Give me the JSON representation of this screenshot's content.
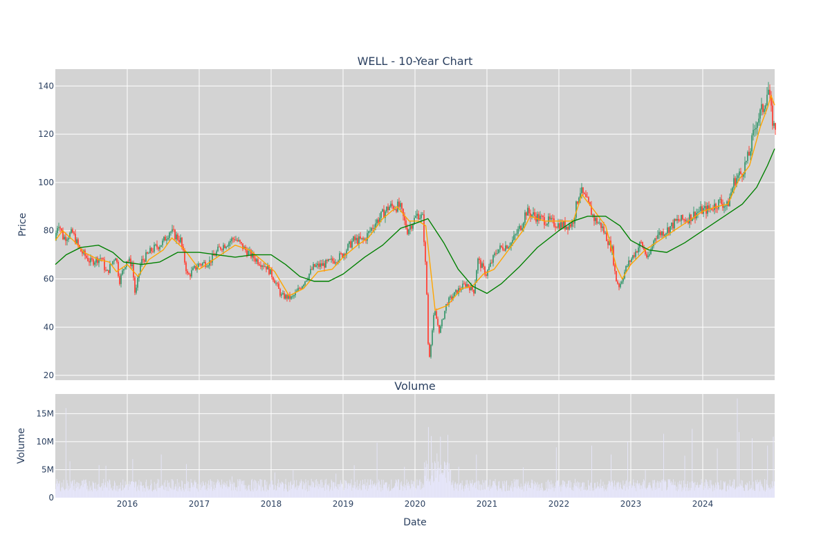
{
  "chart_data": [
    {
      "type": "candlestick",
      "title": "WELL - 10-Year Chart",
      "ylabel": "Price",
      "xlabel": "",
      "xlim": [
        2015.0,
        2025.0
      ],
      "ylim": [
        18,
        147
      ],
      "y_ticks": [
        20,
        40,
        60,
        80,
        100,
        120,
        140
      ],
      "x_ticks": [
        2016,
        2017,
        2018,
        2019,
        2020,
        2021,
        2022,
        2023,
        2024
      ],
      "x_tick_labels": [
        "2016",
        "2017",
        "2018",
        "2019",
        "2020",
        "2021",
        "2022",
        "2023",
        "2024"
      ],
      "grid": true,
      "up_color": "#3d9970",
      "down_color": "#ff4136",
      "plot_bg": "#d3d3d3",
      "grid_color": "#ffffff",
      "price_path": [
        [
          2015.0,
          76
        ],
        [
          2015.05,
          84
        ],
        [
          2015.12,
          77
        ],
        [
          2015.25,
          79
        ],
        [
          2015.35,
          72
        ],
        [
          2015.5,
          67
        ],
        [
          2015.65,
          69
        ],
        [
          2015.72,
          62
        ],
        [
          2015.85,
          70
        ],
        [
          2015.9,
          59
        ],
        [
          2016.0,
          68
        ],
        [
          2016.08,
          66
        ],
        [
          2016.12,
          53
        ],
        [
          2016.2,
          67
        ],
        [
          2016.35,
          72
        ],
        [
          2016.5,
          75
        ],
        [
          2016.6,
          80
        ],
        [
          2016.75,
          76
        ],
        [
          2016.85,
          61
        ],
        [
          2017.0,
          66
        ],
        [
          2017.15,
          67
        ],
        [
          2017.3,
          73
        ],
        [
          2017.5,
          77
        ],
        [
          2017.65,
          72
        ],
        [
          2017.8,
          68
        ],
        [
          2017.95,
          65
        ],
        [
          2018.05,
          60
        ],
        [
          2018.15,
          53
        ],
        [
          2018.3,
          52
        ],
        [
          2018.45,
          58
        ],
        [
          2018.6,
          65
        ],
        [
          2018.75,
          66
        ],
        [
          2018.9,
          68
        ],
        [
          2019.0,
          70
        ],
        [
          2019.15,
          76
        ],
        [
          2019.3,
          76
        ],
        [
          2019.45,
          83
        ],
        [
          2019.65,
          90
        ],
        [
          2019.8,
          90
        ],
        [
          2019.9,
          80
        ],
        [
          2020.05,
          87
        ],
        [
          2020.12,
          85
        ],
        [
          2020.17,
          57
        ],
        [
          2020.2,
          25
        ],
        [
          2020.28,
          47
        ],
        [
          2020.35,
          38
        ],
        [
          2020.45,
          50
        ],
        [
          2020.6,
          55
        ],
        [
          2020.72,
          58
        ],
        [
          2020.83,
          55
        ],
        [
          2020.88,
          68
        ],
        [
          2021.0,
          62
        ],
        [
          2021.15,
          72
        ],
        [
          2021.35,
          75
        ],
        [
          2021.5,
          83
        ],
        [
          2021.55,
          88
        ],
        [
          2021.75,
          85
        ],
        [
          2021.95,
          83
        ],
        [
          2022.1,
          82
        ],
        [
          2022.2,
          83
        ],
        [
          2022.3,
          97
        ],
        [
          2022.4,
          92
        ],
        [
          2022.5,
          85
        ],
        [
          2022.6,
          82
        ],
        [
          2022.75,
          72
        ],
        [
          2022.8,
          60
        ],
        [
          2022.85,
          57
        ],
        [
          2022.95,
          65
        ],
        [
          2023.05,
          70
        ],
        [
          2023.15,
          75
        ],
        [
          2023.25,
          68
        ],
        [
          2023.35,
          78
        ],
        [
          2023.5,
          80
        ],
        [
          2023.65,
          84
        ],
        [
          2023.8,
          85
        ],
        [
          2023.95,
          88
        ],
        [
          2024.1,
          89
        ],
        [
          2024.25,
          92
        ],
        [
          2024.35,
          90
        ],
        [
          2024.45,
          101
        ],
        [
          2024.55,
          104
        ],
        [
          2024.65,
          111
        ],
        [
          2024.75,
          125
        ],
        [
          2024.85,
          131
        ],
        [
          2024.92,
          139
        ],
        [
          2024.96,
          129
        ],
        [
          2025.0,
          123
        ]
      ],
      "series": [
        {
          "color": "#ffa500",
          "points": [
            [
              2015.0,
              76
            ],
            [
              2015.1,
              80
            ],
            [
              2015.25,
              76
            ],
            [
              2015.4,
              71
            ],
            [
              2015.6,
              68
            ],
            [
              2015.75,
              67
            ],
            [
              2015.85,
              63
            ],
            [
              2016.0,
              66
            ],
            [
              2016.15,
              61
            ],
            [
              2016.3,
              68
            ],
            [
              2016.5,
              72
            ],
            [
              2016.62,
              77
            ],
            [
              2016.8,
              72
            ],
            [
              2017.0,
              64
            ],
            [
              2017.15,
              67
            ],
            [
              2017.3,
              70
            ],
            [
              2017.5,
              74
            ],
            [
              2017.7,
              72
            ],
            [
              2017.9,
              67
            ],
            [
              2018.05,
              63
            ],
            [
              2018.25,
              53
            ],
            [
              2018.45,
              56
            ],
            [
              2018.65,
              63
            ],
            [
              2018.85,
              64
            ],
            [
              2019.0,
              69
            ],
            [
              2019.2,
              74
            ],
            [
              2019.35,
              77
            ],
            [
              2019.55,
              85
            ],
            [
              2019.75,
              90
            ],
            [
              2019.92,
              84
            ],
            [
              2020.05,
              84
            ],
            [
              2020.15,
              82
            ],
            [
              2020.28,
              47
            ],
            [
              2020.45,
              49
            ],
            [
              2020.65,
              56
            ],
            [
              2020.8,
              57
            ],
            [
              2020.95,
              62
            ],
            [
              2021.1,
              64
            ],
            [
              2021.3,
              72
            ],
            [
              2021.5,
              80
            ],
            [
              2021.6,
              86
            ],
            [
              2021.8,
              84
            ],
            [
              2022.0,
              84
            ],
            [
              2022.2,
              84
            ],
            [
              2022.32,
              95
            ],
            [
              2022.5,
              88
            ],
            [
              2022.65,
              82
            ],
            [
              2022.8,
              65
            ],
            [
              2022.88,
              60
            ],
            [
              2023.0,
              66
            ],
            [
              2023.2,
              72
            ],
            [
              2023.4,
              76
            ],
            [
              2023.6,
              80
            ],
            [
              2023.8,
              84
            ],
            [
              2024.0,
              88
            ],
            [
              2024.2,
              90
            ],
            [
              2024.35,
              91
            ],
            [
              2024.5,
              101
            ],
            [
              2024.65,
              107
            ],
            [
              2024.8,
              123
            ],
            [
              2024.9,
              131
            ],
            [
              2024.95,
              136
            ],
            [
              2025.0,
              132
            ]
          ]
        },
        {
          "color": "#008000",
          "points": [
            [
              2015.0,
              66
            ],
            [
              2015.15,
              70
            ],
            [
              2015.35,
              73
            ],
            [
              2015.6,
              74
            ],
            [
              2015.8,
              71
            ],
            [
              2015.95,
              67
            ],
            [
              2016.2,
              66
            ],
            [
              2016.45,
              67
            ],
            [
              2016.7,
              71
            ],
            [
              2017.0,
              71
            ],
            [
              2017.25,
              70
            ],
            [
              2017.5,
              69
            ],
            [
              2017.75,
              70
            ],
            [
              2018.0,
              70
            ],
            [
              2018.2,
              66
            ],
            [
              2018.4,
              61
            ],
            [
              2018.6,
              59
            ],
            [
              2018.8,
              59
            ],
            [
              2019.0,
              62
            ],
            [
              2019.3,
              69
            ],
            [
              2019.55,
              74
            ],
            [
              2019.8,
              81
            ],
            [
              2020.0,
              83
            ],
            [
              2020.18,
              85
            ],
            [
              2020.4,
              75
            ],
            [
              2020.6,
              64
            ],
            [
              2020.8,
              57
            ],
            [
              2021.0,
              54
            ],
            [
              2021.2,
              58
            ],
            [
              2021.45,
              65
            ],
            [
              2021.7,
              73
            ],
            [
              2022.0,
              80
            ],
            [
              2022.2,
              84
            ],
            [
              2022.4,
              86
            ],
            [
              2022.65,
              86
            ],
            [
              2022.85,
              82
            ],
            [
              2023.0,
              76
            ],
            [
              2023.25,
              72
            ],
            [
              2023.5,
              71
            ],
            [
              2023.75,
              75
            ],
            [
              2024.0,
              80
            ],
            [
              2024.3,
              86
            ],
            [
              2024.55,
              91
            ],
            [
              2024.75,
              98
            ],
            [
              2024.9,
              107
            ],
            [
              2025.0,
              114
            ]
          ]
        }
      ]
    },
    {
      "type": "bar",
      "title": "Volume",
      "ylabel": "Volume",
      "xlabel": "Date",
      "xlim": [
        2015.0,
        2025.0
      ],
      "ylim": [
        0,
        18500000
      ],
      "y_ticks": [
        0,
        5000000,
        10000000,
        15000000
      ],
      "y_tick_labels": [
        "0",
        "5M",
        "10M",
        "15M"
      ],
      "x_ticks": [
        2016,
        2017,
        2018,
        2019,
        2020,
        2021,
        2022,
        2023,
        2024
      ],
      "x_tick_labels": [
        "2016",
        "2017",
        "2018",
        "2019",
        "2020",
        "2021",
        "2022",
        "2023",
        "2024"
      ],
      "grid": true,
      "bar_color": "#e6e6fa",
      "plot_bg": "#d3d3d3",
      "baseline_level": 2400000,
      "spikes": [
        [
          2015.14,
          16000000
        ],
        [
          2015.2,
          6500000
        ],
        [
          2015.6,
          5800000
        ],
        [
          2015.7,
          5700000
        ],
        [
          2016.07,
          6900000
        ],
        [
          2016.47,
          7700000
        ],
        [
          2016.82,
          6000000
        ],
        [
          2017.0,
          4800000
        ],
        [
          2017.45,
          3800000
        ],
        [
          2018.05,
          4500000
        ],
        [
          2018.3,
          4900000
        ],
        [
          2018.9,
          4300000
        ],
        [
          2019.15,
          5800000
        ],
        [
          2019.47,
          9800000
        ],
        [
          2019.85,
          5500000
        ],
        [
          2020.18,
          12600000
        ],
        [
          2020.22,
          11000000
        ],
        [
          2020.3,
          7900000
        ],
        [
          2020.35,
          10900000
        ],
        [
          2020.45,
          11200000
        ],
        [
          2020.6,
          5500000
        ],
        [
          2020.85,
          7700000
        ],
        [
          2021.5,
          5400000
        ],
        [
          2021.96,
          9000000
        ],
        [
          2022.45,
          9300000
        ],
        [
          2022.72,
          7700000
        ],
        [
          2022.95,
          10000000
        ],
        [
          2023.2,
          4900000
        ],
        [
          2023.45,
          11400000
        ],
        [
          2023.75,
          7500000
        ],
        [
          2023.85,
          12300000
        ],
        [
          2024.2,
          8800000
        ],
        [
          2024.48,
          17700000
        ],
        [
          2024.5,
          11700000
        ],
        [
          2024.68,
          10600000
        ],
        [
          2024.9,
          9300000
        ],
        [
          2024.98,
          10900000
        ]
      ]
    }
  ]
}
